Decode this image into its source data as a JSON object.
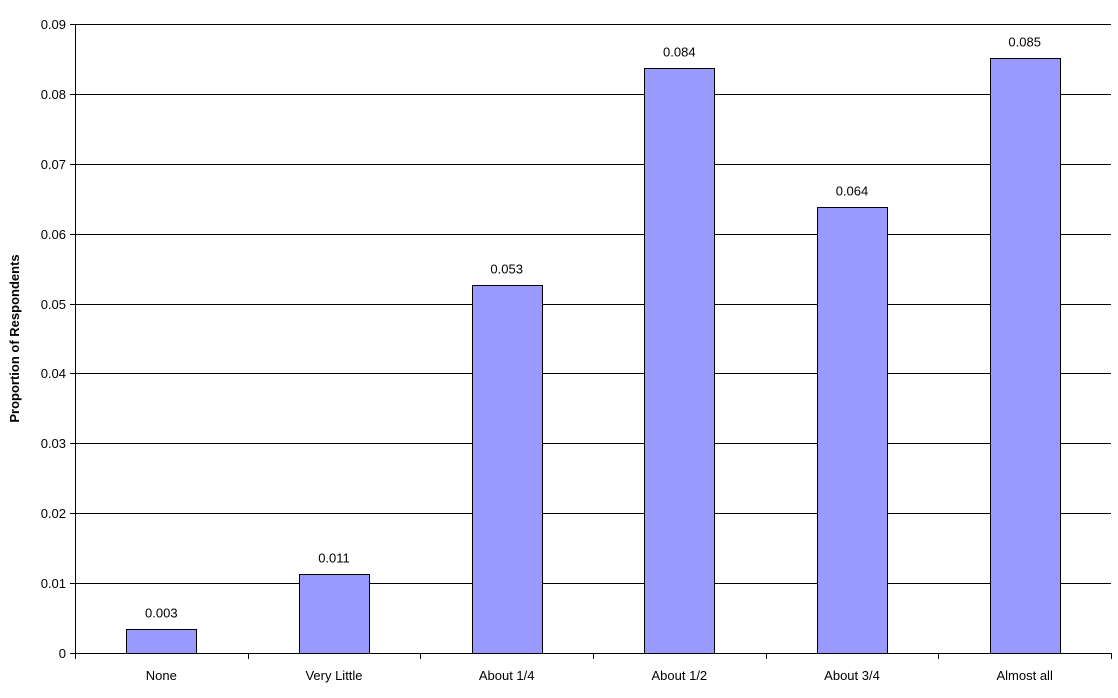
{
  "chart_data": {
    "type": "bar",
    "categories": [
      "None",
      "Very Little",
      "About 1/4",
      "About 1/2",
      "About 3/4",
      "Almost all"
    ],
    "values": [
      0.0034,
      0.0113,
      0.0526,
      0.0837,
      0.0638,
      0.0851
    ],
    "data_labels": [
      "0.003",
      "0.011",
      "0.053",
      "0.084",
      "0.064",
      "0.085"
    ],
    "title": "",
    "xlabel": "",
    "ylabel": "Proportion of Respondents",
    "ylim": [
      0,
      0.09
    ],
    "yticks": [
      0,
      0.01,
      0.02,
      0.03,
      0.04,
      0.05,
      0.06,
      0.07,
      0.08,
      0.09
    ],
    "ytick_labels": [
      "0",
      "0.01",
      "0.02",
      "0.03",
      "0.04",
      "0.05",
      "0.06",
      "0.07",
      "0.08",
      "0.09"
    ],
    "grid": "horizontal",
    "legend": "none",
    "colors": {
      "bar_fill": "#9999ff",
      "bar_stroke": "#000000",
      "gridline": "#000000",
      "background": "#ffffff"
    }
  }
}
